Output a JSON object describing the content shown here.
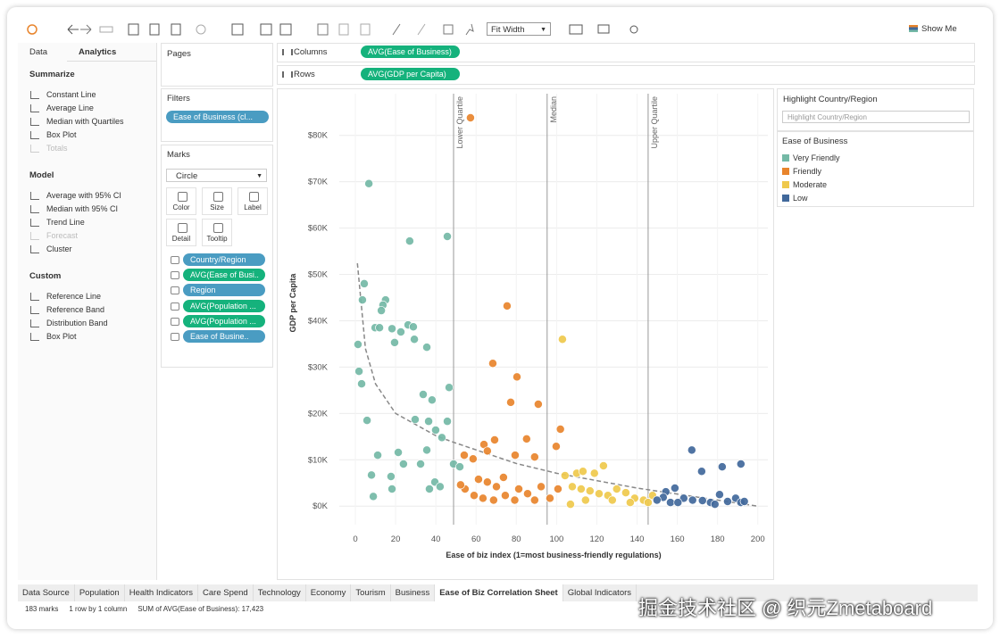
{
  "toolbar": {
    "fit": "Fit Width",
    "show_me": "Show Me"
  },
  "analytics_panel": {
    "tabs": [
      "Data",
      "Analytics"
    ],
    "active_tab": 1,
    "sections": [
      {
        "title": "Summarize",
        "items": [
          {
            "label": "Constant Line"
          },
          {
            "label": "Average Line"
          },
          {
            "label": "Median with Quartiles"
          },
          {
            "label": "Box Plot"
          },
          {
            "label": "Totals",
            "enabled": false
          }
        ]
      },
      {
        "title": "Model",
        "items": [
          {
            "label": "Average with 95% CI"
          },
          {
            "label": "Median with 95% CI"
          },
          {
            "label": "Trend Line"
          },
          {
            "label": "Forecast",
            "enabled": false
          },
          {
            "label": "Cluster"
          }
        ]
      },
      {
        "title": "Custom",
        "items": [
          {
            "label": "Reference Line"
          },
          {
            "label": "Reference Band"
          },
          {
            "label": "Distribution Band"
          },
          {
            "label": "Box Plot"
          }
        ]
      }
    ]
  },
  "pages": {
    "title": "Pages"
  },
  "filters": {
    "title": "Filters",
    "pills": [
      {
        "label": "Ease of Business (cl...",
        "kind": "dimension"
      }
    ]
  },
  "marks": {
    "title": "Marks",
    "mark_type": "Circle",
    "buttons": [
      "Color",
      "Size",
      "Label",
      "Detail",
      "Tooltip"
    ],
    "pills": [
      {
        "label": "Country/Region",
        "kind": "dimension"
      },
      {
        "label": "AVG(Ease of Busi..",
        "kind": "measure"
      },
      {
        "label": "Region",
        "kind": "dimension"
      },
      {
        "label": "AVG(Population ...",
        "kind": "measure"
      },
      {
        "label": "AVG(Population ...",
        "kind": "measure"
      },
      {
        "label": "Ease of Busine..",
        "kind": "dimension"
      }
    ]
  },
  "shelves": [
    {
      "label": "Columns",
      "pill": "AVG(Ease of Business)"
    },
    {
      "label": "Rows",
      "pill": "AVG(GDP per Capita)"
    }
  ],
  "highlight": {
    "title": "Highlight Country/Region",
    "placeholder": "Highlight Country/Region"
  },
  "sheet_tabs": {
    "tabs": [
      "Data Source",
      "Population",
      "Health Indicators",
      "Care Spend",
      "Technology",
      "Economy",
      "Tourism",
      "Business",
      "Ease of Biz Correlation Sheet",
      "Global Indicators"
    ],
    "active": 8
  },
  "status": [
    "183 marks",
    "1 row by 1 column",
    "SUM of AVG(Ease of Business): 17,423"
  ],
  "watermark": "掘金技术社区 @ 织元Zmetaboard",
  "chart_data": {
    "type": "scatter",
    "x_label": "Ease of biz index (1=most business-friendly regulations)",
    "y_label": "GDP per Capita",
    "legend_title": "Ease of Business",
    "xlim": [
      -8,
      205
    ],
    "xticks": [
      0,
      20,
      40,
      60,
      80,
      100,
      120,
      140,
      160,
      180,
      200
    ],
    "ylim": [
      -4000,
      89000
    ],
    "yticks": [
      {
        "value": 0,
        "label": "$0K"
      },
      {
        "value": 10000,
        "label": "$10K"
      },
      {
        "value": 20000,
        "label": "$20K"
      },
      {
        "value": 30000,
        "label": "$30K"
      },
      {
        "value": 40000,
        "label": "$40K"
      },
      {
        "value": 50000,
        "label": "$50K"
      },
      {
        "value": 60000,
        "label": "$60K"
      },
      {
        "value": 70000,
        "label": "$70K"
      },
      {
        "value": 80000,
        "label": "$80K"
      }
    ],
    "grid": true,
    "reference_lines": [
      {
        "label": "Lower Quartile",
        "value": 48.8
      },
      {
        "label": "Median",
        "value": 95.3
      },
      {
        "label": "Upper Quartile",
        "value": 145.5
      }
    ],
    "trend_line": {
      "x": [
        1,
        5,
        10,
        20,
        40,
        48,
        80,
        100,
        140,
        200
      ],
      "values": [
        52400,
        34000,
        26400,
        20000,
        15200,
        13900,
        9200,
        7100,
        3900,
        0
      ]
    },
    "series": [
      {
        "name": "Very Friendly",
        "color": "#74b9a6",
        "x": [
          6.7,
          27,
          45.7,
          4.4,
          3.5,
          15,
          13.7,
          12.9,
          9.8,
          12,
          26.2,
          28.8,
          22.6,
          18.2,
          19.5,
          29.3,
          35.5,
          1.3,
          1.8,
          3.1,
          33.7,
          46.6,
          38.1,
          29.7,
          5.8,
          45.7,
          36.4,
          39.9,
          43,
          21.3,
          35.5,
          11.1,
          23.9,
          32.4,
          48.8,
          8,
          17.7,
          39.5,
          42.1,
          36.8,
          18.2,
          8.9,
          51.9
        ],
        "values": [
          69600,
          57200,
          58200,
          48000,
          44500,
          44500,
          43400,
          42200,
          38500,
          38500,
          39100,
          38700,
          37600,
          38300,
          35300,
          36000,
          34300,
          34900,
          29100,
          26400,
          24100,
          25600,
          22900,
          18700,
          18500,
          18300,
          18300,
          16400,
          14800,
          11600,
          12100,
          11000,
          9100,
          9100,
          9100,
          6700,
          6400,
          5200,
          4200,
          3700,
          3700,
          2100,
          8500
        ]
      },
      {
        "name": "Friendly",
        "color": "#e8842c",
        "x": [
          57.2,
          75.4,
          68.3,
          80.3,
          77.2,
          90.9,
          101.9,
          85.1,
          69.2,
          63.9,
          65.6,
          54.1,
          58.5,
          79.4,
          89.1,
          99.8,
          61.2,
          65.6,
          70.1,
          73.6,
          54.5,
          59,
          63.4,
          68.7,
          74.5,
          81.2,
          85.6,
          92.3,
          96.7,
          89.1,
          79.2,
          100.7,
          52.3
        ],
        "values": [
          83800,
          43200,
          30800,
          27900,
          22400,
          22000,
          16600,
          14500,
          14300,
          13300,
          11900,
          11000,
          10200,
          11000,
          10600,
          12900,
          5800,
          5200,
          4200,
          6200,
          3700,
          2300,
          1700,
          1300,
          2300,
          3700,
          2700,
          4200,
          1700,
          1300,
          1300,
          3700,
          4600
        ]
      },
      {
        "name": "Moderate",
        "color": "#efc94c",
        "x": [
          102.9,
          104.2,
          110,
          113.1,
          118.8,
          123.3,
          107.8,
          112.2,
          116.6,
          121.1,
          125.5,
          129.9,
          134.4,
          138.8,
          143.2,
          147.7,
          106.9,
          114.4,
          127.7,
          136.6,
          145.5
        ],
        "values": [
          36000,
          6600,
          7100,
          7500,
          7100,
          8700,
          4200,
          3700,
          3300,
          2700,
          2300,
          3700,
          2900,
          1700,
          1300,
          2300,
          400,
          1300,
          1300,
          800,
          800
        ]
      },
      {
        "name": "Low",
        "color": "#41689b",
        "x": [
          167.2,
          172.1,
          182.3,
          191.6,
          158.8,
          154.3,
          153,
          163.2,
          167.6,
          172.5,
          176.5,
          181,
          185,
          189,
          191.6,
          193.3,
          149.9,
          156.6,
          160.3,
          178.7
        ],
        "values": [
          12100,
          7500,
          8500,
          9100,
          3900,
          3100,
          1900,
          1700,
          1300,
          1200,
          800,
          2500,
          1000,
          1700,
          800,
          1000,
          1300,
          800,
          800,
          400
        ]
      }
    ]
  }
}
